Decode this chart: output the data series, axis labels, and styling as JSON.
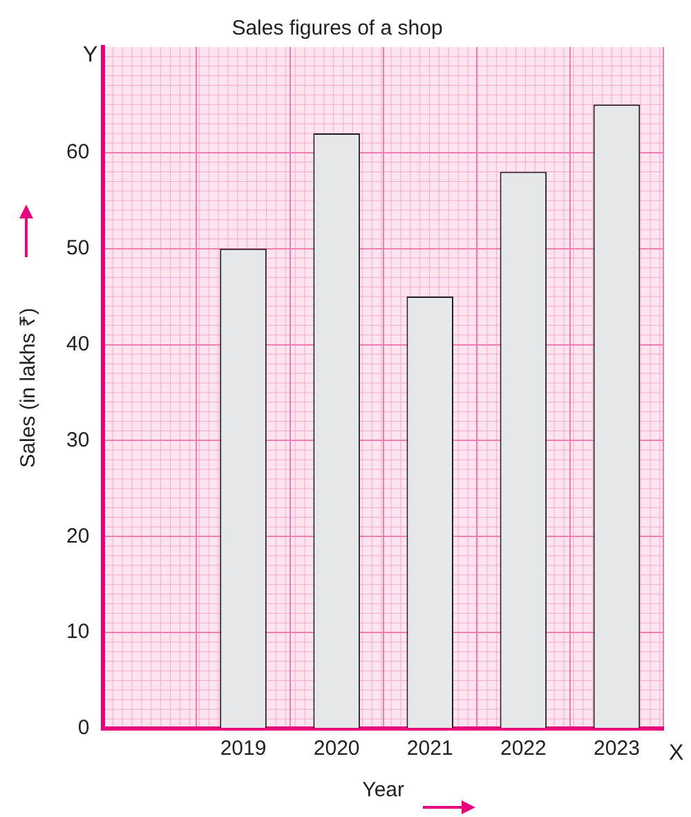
{
  "chart_data": {
    "type": "bar",
    "title": "Sales figures of a shop",
    "xlabel": "Year",
    "ylabel": "Sales (in lakhs ₹)",
    "categories": [
      null,
      "2019",
      "2020",
      "2021",
      "2022",
      "2023"
    ],
    "values": [
      null,
      50,
      62,
      45,
      58,
      65
    ],
    "color": "#e6e7e8",
    "ylim": [
      0,
      71
    ],
    "yticks": [
      0,
      10,
      20,
      30,
      40,
      50,
      60
    ],
    "grid": true,
    "annotations": [
      "X",
      "Y"
    ]
  }
}
